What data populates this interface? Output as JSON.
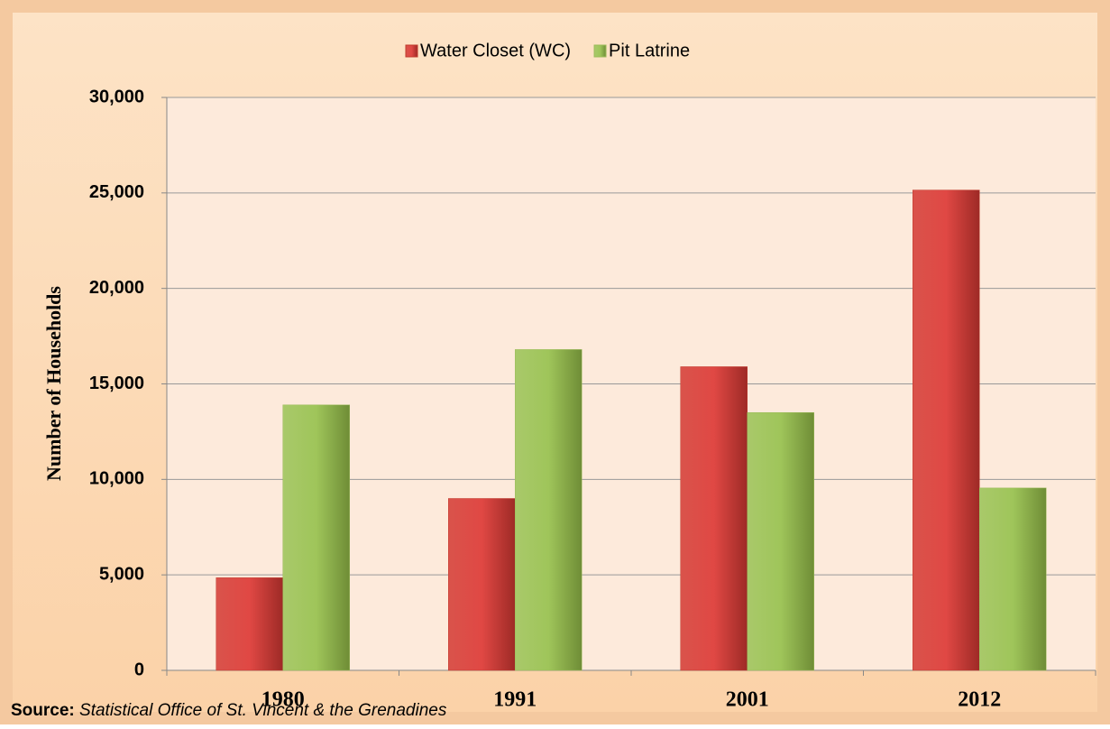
{
  "chart_data": {
    "type": "bar",
    "categories": [
      "1980",
      "1991",
      "2001",
      "2012"
    ],
    "series": [
      {
        "name": "Water Closet (WC)",
        "color": "#c0392b",
        "values": [
          4850,
          9000,
          15900,
          25150
        ]
      },
      {
        "name": "Pit Latrine",
        "color": "#9bbb59",
        "values": [
          13900,
          16800,
          13500,
          9550
        ]
      }
    ],
    "ylabel": "Number of Households",
    "ylim": [
      0,
      30000
    ],
    "yticks": [
      0,
      {
        "value": 5000,
        "label": "5,000"
      },
      {
        "value": 10000,
        "label": "10,000"
      },
      {
        "value": 15000,
        "label": "15,000"
      },
      {
        "value": 20000,
        "label": "20,000"
      },
      {
        "value": 25000,
        "label": "25,000"
      },
      {
        "value": 30000,
        "label": "30,000"
      }
    ],
    "grid": true,
    "legend": "top",
    "source": {
      "label": "Source:",
      "text": "Statistical Office of St. Vincent & the Grenadines"
    }
  }
}
